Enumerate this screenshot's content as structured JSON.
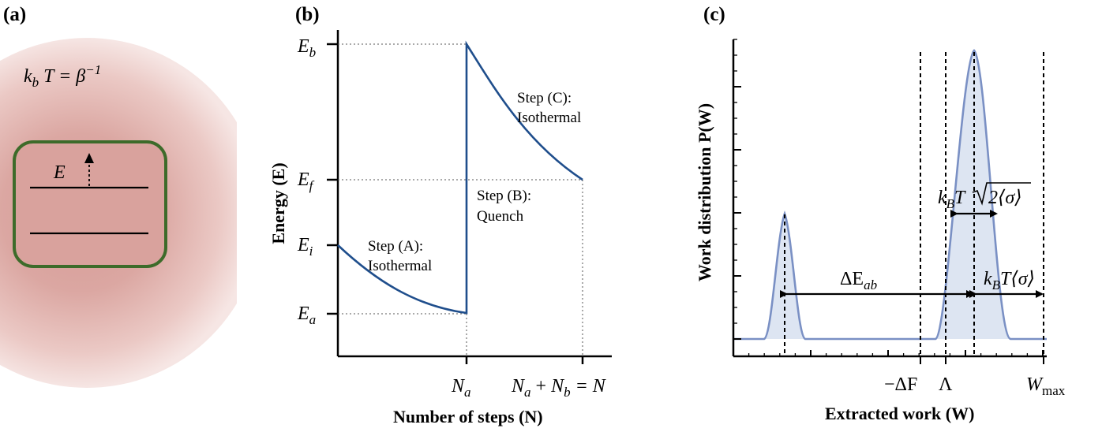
{
  "panels": {
    "a": {
      "label": "(a)",
      "bath_label_k": "k",
      "bath_label_b": "b",
      "bath_label_rest": "T = β",
      "bath_label_exp": "−1",
      "level_label": "E"
    },
    "b": {
      "label": "(b)",
      "ylabel": "Energy (E)",
      "xlabel": "Number of steps (N)",
      "y_ticks": [
        {
          "main": "E",
          "sub": "b"
        },
        {
          "main": "E",
          "sub": "f"
        },
        {
          "main": "E",
          "sub": "i"
        },
        {
          "main": "E",
          "sub": "a"
        }
      ],
      "x_ticks": {
        "na_main": "N",
        "na_sub": "a",
        "sum_n1": "N",
        "sum_s1": "a",
        "sum_plus": " + ",
        "sum_n2": "N",
        "sum_s2": "b",
        "sum_eq": " = N"
      },
      "steps": {
        "a_line1": "Step (A):",
        "a_line2": "Isothermal",
        "b_line1": "Step (B):",
        "b_line2": "Quench",
        "c_line1": "Step (C):",
        "c_line2": "Isothermal"
      },
      "curve_color": "#1f4e8c"
    },
    "c": {
      "label": "(c)",
      "ylabel": "Work distribution P(W)",
      "xlabel": "Extracted work (W)",
      "x_ticks": {
        "dF": "−ΔF",
        "lambda": "Λ",
        "wmax_main": "W",
        "wmax_sub": "max"
      },
      "annotations": {
        "dE_main": "ΔE",
        "dE_sub": "ab",
        "sqrt_k": "k",
        "sqrt_B": "B",
        "sqrt_T": "T",
        "sqrt_arg": "2⟨σ⟩",
        "ks_k": "k",
        "ks_B": "B",
        "ks_rest": "T⟨σ⟩"
      },
      "curve_color": "#7a90c4",
      "fill_color": "#dde5f2"
    }
  }
}
